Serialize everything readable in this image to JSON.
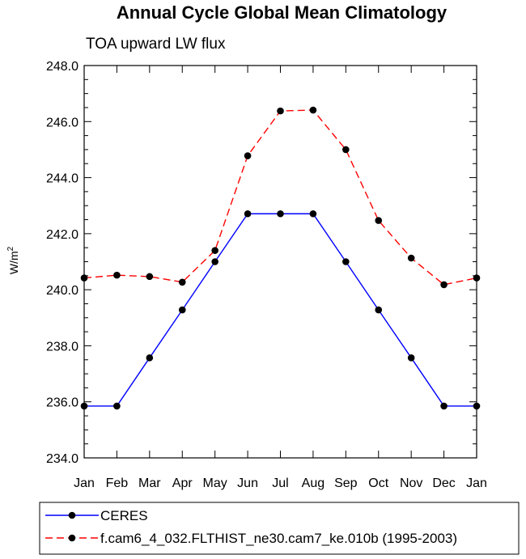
{
  "chart_data": {
    "type": "line",
    "title": "Annual Cycle Global Mean Climatology",
    "subtitle": "TOA upward LW flux",
    "xlabel": "",
    "ylabel": "W/m",
    "ylabel_superscript": "2",
    "categories": [
      "Jan",
      "Feb",
      "Mar",
      "Apr",
      "May",
      "Jun",
      "Jul",
      "Aug",
      "Sep",
      "Oct",
      "Nov",
      "Dec",
      "Jan"
    ],
    "ylim": [
      234.0,
      248.0
    ],
    "yticks": [
      "234.0",
      "236.0",
      "238.0",
      "240.0",
      "242.0",
      "244.0",
      "246.0",
      "248.0"
    ],
    "ytick_values": [
      234,
      236,
      238,
      240,
      242,
      244,
      246,
      248
    ],
    "grid": false,
    "legend_position": "bottom",
    "series": [
      {
        "name": "CERES",
        "color": "#0000ff",
        "line_style": "solid",
        "marker": "filled-circle",
        "values": [
          235.85,
          235.85,
          237.57,
          239.28,
          241.0,
          242.71,
          242.71,
          242.71,
          241.0,
          239.28,
          237.57,
          235.85,
          235.85
        ]
      },
      {
        "name": "f.cam6_4_032.FLTHIST_ne30.cam7_ke.010b (1995-2003)",
        "color": "#ff0000",
        "line_style": "dashed",
        "marker": "filled-circle",
        "values": [
          240.42,
          240.52,
          240.47,
          240.27,
          241.4,
          244.78,
          246.38,
          246.41,
          245.0,
          242.47,
          241.13,
          240.18,
          240.42
        ]
      }
    ]
  }
}
